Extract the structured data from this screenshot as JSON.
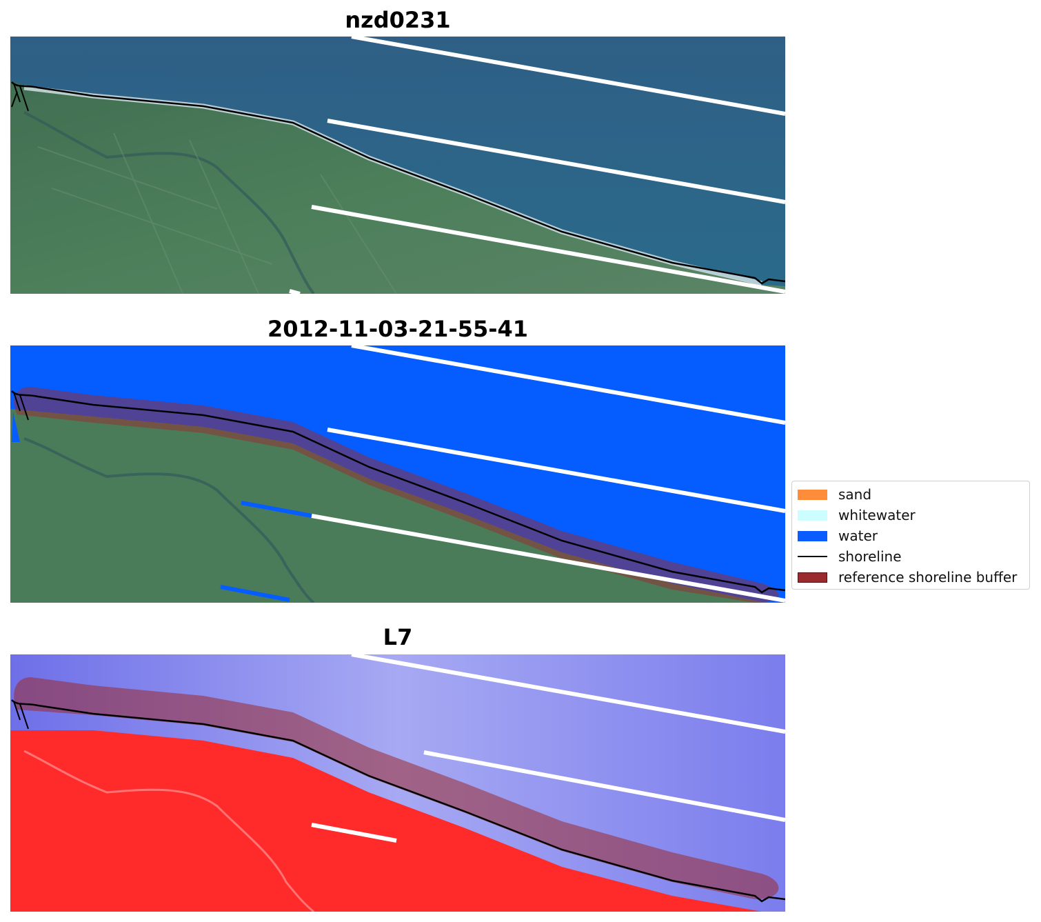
{
  "panels": [
    {
      "title": "nzd0231",
      "mode": "rgb"
    },
    {
      "title": "2012-11-03-21-55-41",
      "mode": "classified"
    },
    {
      "title": "L7",
      "mode": "index"
    }
  ],
  "legend": {
    "items": [
      {
        "label": "sand",
        "color": "#ff8c3a",
        "kind": "patch"
      },
      {
        "label": "whitewater",
        "color": "#ccfdff",
        "kind": "patch"
      },
      {
        "label": "water",
        "color": "#0a5cff",
        "kind": "patch"
      },
      {
        "label": "shoreline",
        "color": "#000000",
        "kind": "line"
      },
      {
        "label": "reference shoreline buffer",
        "color": "#9b2a2e",
        "kind": "patch"
      }
    ]
  },
  "colors": {
    "sea_rgb": "#2d5e83",
    "land_rgb": "#4a7a58",
    "water_class": "#055cff",
    "buffer": "#9b2a2e",
    "index_water": "#8a8cf0",
    "index_land": "#ff2a2a",
    "transect": "#ffffff",
    "shoreline": "#000000"
  }
}
